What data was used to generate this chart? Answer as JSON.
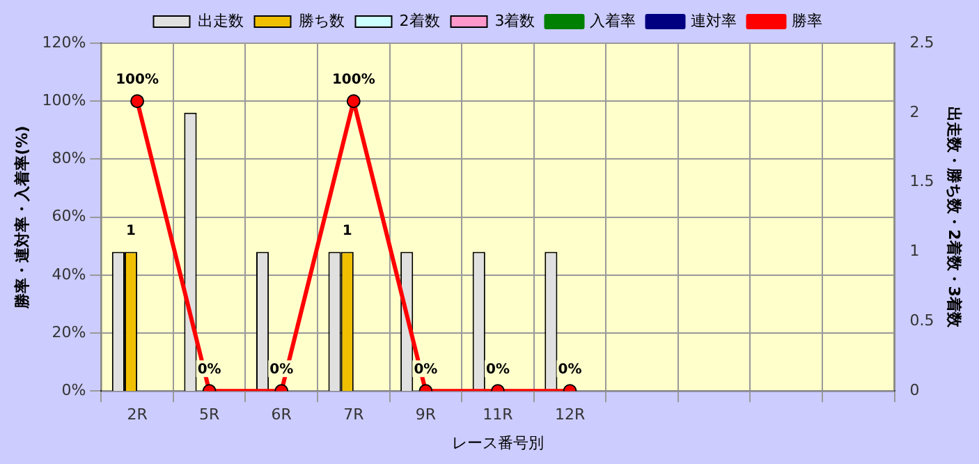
{
  "chart_data": {
    "type": "bar",
    "xlabel": "レース番号別",
    "ylabel": "勝率・連対率・入着率(%)",
    "y2label": "出走数・勝ち数・2着数・3着数",
    "categories": [
      "2R",
      "5R",
      "6R",
      "7R",
      "9R",
      "11R",
      "12R",
      null,
      null,
      null,
      null
    ],
    "series": [
      {
        "name": "出走数",
        "axis": "y2",
        "color": "#e0e0e0",
        "values": [
          1,
          2,
          1,
          1,
          1,
          1,
          1,
          null,
          null,
          null,
          null
        ]
      },
      {
        "name": "勝ち数",
        "axis": "y2",
        "color": "#f0c000",
        "values": [
          1,
          0,
          0,
          1,
          0,
          0,
          0,
          null,
          null,
          null,
          null
        ],
        "value_labels": [
          "1",
          null,
          null,
          "1",
          null,
          null,
          null,
          null,
          null,
          null,
          null
        ]
      },
      {
        "name": "2着数",
        "axis": "y2",
        "color": "#ccffff",
        "values": [
          0,
          0,
          0,
          0,
          0,
          0,
          0,
          null,
          null,
          null,
          null
        ]
      },
      {
        "name": "3着数",
        "axis": "y2",
        "color": "#ff99cc",
        "values": [
          0,
          0,
          0,
          0,
          0,
          0,
          0,
          null,
          null,
          null,
          null
        ]
      },
      {
        "name": "入着率",
        "type": "line",
        "axis": "y",
        "color": "#008000",
        "marker": "triangle",
        "values": [
          null,
          null,
          null,
          null,
          null,
          null,
          null,
          null,
          null,
          null,
          null
        ]
      },
      {
        "name": "連対率",
        "type": "line",
        "axis": "y",
        "color": "#000080",
        "marker": "diamond",
        "values": [
          null,
          null,
          null,
          null,
          null,
          null,
          null,
          null,
          null,
          null,
          null
        ]
      },
      {
        "name": "勝率",
        "type": "line",
        "axis": "y",
        "color": "#ff0000",
        "marker": "circle",
        "values": [
          100,
          0,
          0,
          100,
          0,
          0,
          0,
          null,
          null,
          null,
          null
        ],
        "value_labels": [
          "100%",
          "0%",
          "0%",
          "100%",
          "0%",
          "0%",
          "0%",
          null,
          null,
          null,
          null
        ]
      }
    ],
    "ylim": [
      0,
      120
    ],
    "yticks": [
      {
        "value": 0,
        "label": "0%"
      },
      {
        "value": 20,
        "label": "20%"
      },
      {
        "value": 40,
        "label": "40%"
      },
      {
        "value": 60,
        "label": "60%"
      },
      {
        "value": 80,
        "label": "80%"
      },
      {
        "value": 100,
        "label": "100%"
      },
      {
        "value": 120,
        "label": "120%"
      }
    ],
    "y2lim": [
      0,
      2.5
    ],
    "y2ticks": [
      0,
      0.5,
      1,
      1.5,
      2,
      2.5
    ],
    "grid": true,
    "legend": "top"
  }
}
